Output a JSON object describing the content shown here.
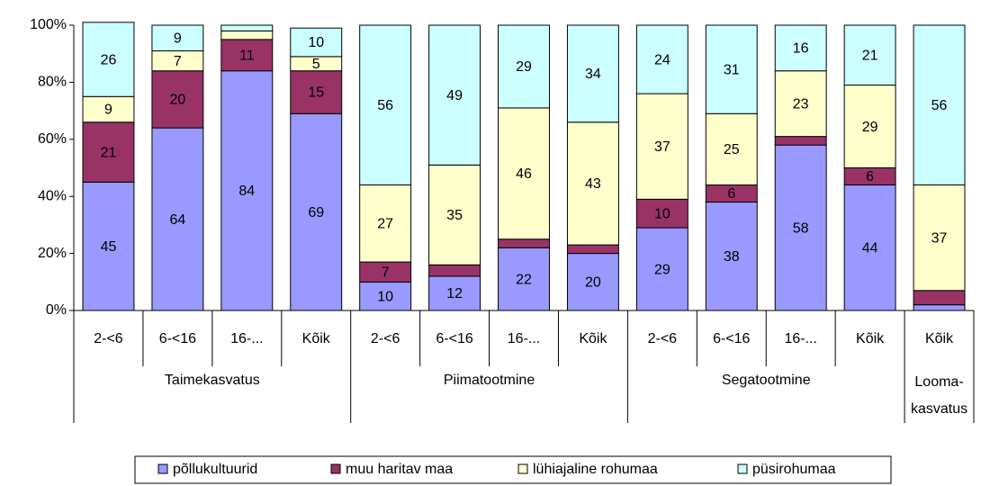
{
  "chart_data": {
    "type": "stacked_bar",
    "groups": [
      {
        "label": "Taimekasvatus",
        "categories": [
          "2-<6",
          "6-<16",
          "16-...",
          "Kõik"
        ]
      },
      {
        "label": "Piimatootmine",
        "categories": [
          "2-<6",
          "6-<16",
          "16-...",
          "Kõik"
        ]
      },
      {
        "label": "Segatootmine",
        "categories": [
          "2-<6",
          "6-<16",
          "16-...",
          "Kõik"
        ]
      },
      {
        "label": [
          "Looma-",
          "kasvatus"
        ],
        "categories": [
          "Kõik"
        ]
      }
    ],
    "series": [
      {
        "name": "põllukultuurid",
        "color": "#9999ff",
        "values": [
          45,
          64,
          84,
          69,
          10,
          12,
          22,
          20,
          29,
          38,
          58,
          44,
          2
        ],
        "value_labels": [
          "45",
          "64",
          "84",
          "69",
          "10",
          "12",
          "22",
          "20",
          "29",
          "38",
          "58",
          "44",
          null
        ]
      },
      {
        "name": "muu haritav maa",
        "color": "#993366",
        "values": [
          21,
          20,
          11,
          15,
          7,
          4,
          3,
          3,
          10,
          6,
          3,
          6,
          5
        ],
        "value_labels": [
          "21",
          "20",
          "11",
          "15",
          "7",
          null,
          null,
          null,
          "10",
          "6",
          null,
          "6",
          null
        ]
      },
      {
        "name": "lühiajaline rohumaa",
        "color": "#ffffcc",
        "values": [
          9,
          7,
          3,
          5,
          27,
          35,
          46,
          43,
          37,
          25,
          23,
          29,
          37
        ],
        "value_labels": [
          "9",
          "7",
          null,
          "5",
          "27",
          "35",
          "46",
          "43",
          "37",
          "25",
          "23",
          "29",
          "37"
        ]
      },
      {
        "name": "püsirohumaa",
        "color": "#ccffff",
        "values": [
          26,
          9,
          2,
          10,
          56,
          49,
          29,
          34,
          24,
          31,
          16,
          21,
          56
        ],
        "value_labels": [
          "26",
          "9",
          null,
          "10",
          "56",
          "49",
          "29",
          "34",
          "24",
          "31",
          "16",
          "21",
          "56"
        ]
      }
    ],
    "ylim": [
      0,
      100
    ],
    "yticks": [
      {
        "value": 0,
        "label": "0%"
      },
      {
        "value": 20,
        "label": "20%"
      },
      {
        "value": 40,
        "label": "40%"
      },
      {
        "value": 60,
        "label": "60%"
      },
      {
        "value": 80,
        "label": "80%"
      },
      {
        "value": 100,
        "label": "100%"
      }
    ],
    "legend": "bottom"
  }
}
